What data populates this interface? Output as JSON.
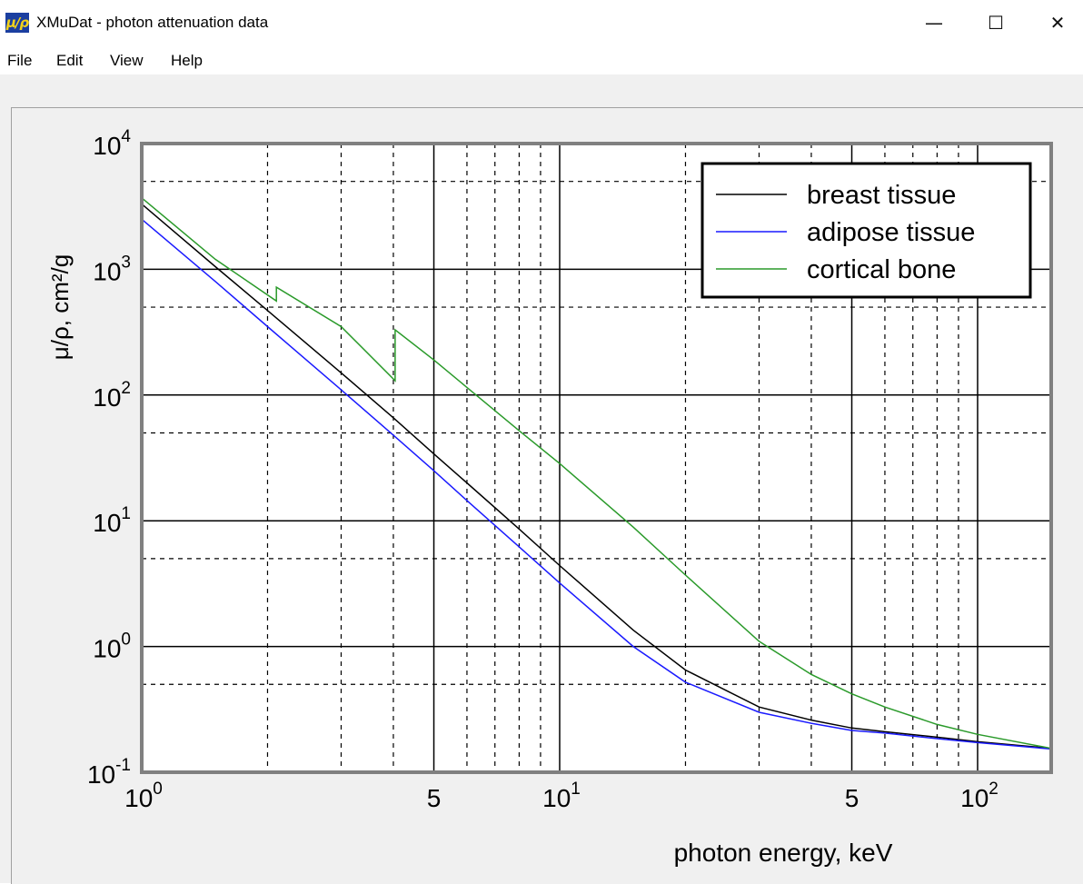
{
  "window": {
    "title": "XMuDat - photon attenuation data",
    "icon": "xmudat-app-icon",
    "icon_text": "μ/ρ",
    "controls": {
      "minimize": "—",
      "maximize": "☐",
      "close": "✕"
    }
  },
  "menu": {
    "items": [
      "File",
      "Edit",
      "View",
      "Help"
    ]
  },
  "colors": {
    "breast": "#000000",
    "adipose": "#1a1aff",
    "bone": "#2a9a2a",
    "plot_border": "#808080"
  },
  "chart_data": {
    "type": "line",
    "xscale": "log",
    "yscale": "log",
    "xlim": [
      1,
      150
    ],
    "ylim": [
      0.1,
      10000
    ],
    "xlabel": "photon energy, keV",
    "ylabel": "μ/ρ, cm²/g",
    "grid": true,
    "legend_position": "top-right",
    "y_ticks": [
      {
        "value": 10000,
        "base": "10",
        "exp": "4"
      },
      {
        "value": 1000,
        "base": "10",
        "exp": "3"
      },
      {
        "value": 100,
        "base": "10",
        "exp": "2"
      },
      {
        "value": 10,
        "base": "10",
        "exp": "1"
      },
      {
        "value": 1,
        "base": "10",
        "exp": "0"
      },
      {
        "value": 0.1,
        "base": "10",
        "exp": "-1"
      }
    ],
    "x_ticks": [
      {
        "value": 1,
        "base": "10",
        "exp": "0"
      },
      {
        "value": 5,
        "base": "5",
        "exp": ""
      },
      {
        "value": 10,
        "base": "10",
        "exp": "1"
      },
      {
        "value": 50,
        "base": "5",
        "exp": ""
      },
      {
        "value": 100,
        "base": "10",
        "exp": "2"
      }
    ],
    "series": [
      {
        "name": "breast tissue",
        "color": "#000000",
        "points": [
          [
            1,
            3300
          ],
          [
            1.5,
            1050
          ],
          [
            2,
            470
          ],
          [
            3,
            150
          ],
          [
            4,
            66
          ],
          [
            5,
            34
          ],
          [
            6,
            20
          ],
          [
            8,
            8.6
          ],
          [
            10,
            4.4
          ],
          [
            15,
            1.35
          ],
          [
            20,
            0.65
          ],
          [
            30,
            0.33
          ],
          [
            40,
            0.26
          ],
          [
            50,
            0.225
          ],
          [
            60,
            0.21
          ],
          [
            80,
            0.19
          ],
          [
            100,
            0.175
          ],
          [
            150,
            0.155
          ]
        ]
      },
      {
        "name": "adipose tissue",
        "color": "#1a1aff",
        "points": [
          [
            1,
            2500
          ],
          [
            1.5,
            800
          ],
          [
            2,
            350
          ],
          [
            3,
            110
          ],
          [
            4,
            48
          ],
          [
            5,
            25
          ],
          [
            6,
            14.5
          ],
          [
            8,
            6.2
          ],
          [
            10,
            3.2
          ],
          [
            15,
            1.0
          ],
          [
            20,
            0.52
          ],
          [
            30,
            0.3
          ],
          [
            40,
            0.245
          ],
          [
            50,
            0.215
          ],
          [
            60,
            0.205
          ],
          [
            80,
            0.185
          ],
          [
            100,
            0.172
          ],
          [
            150,
            0.153
          ]
        ]
      },
      {
        "name": "cortical bone",
        "color": "#2a9a2a",
        "points": [
          [
            1,
            3700
          ],
          [
            1.5,
            1200
          ],
          [
            2.1,
            560
          ],
          [
            2.1,
            720
          ],
          [
            3,
            350
          ],
          [
            4.04,
            130
          ],
          [
            4.04,
            330
          ],
          [
            5,
            190
          ],
          [
            6,
            115
          ],
          [
            8,
            52
          ],
          [
            10,
            28.5
          ],
          [
            15,
            8.9
          ],
          [
            20,
            3.7
          ],
          [
            30,
            1.1
          ],
          [
            40,
            0.6
          ],
          [
            50,
            0.42
          ],
          [
            60,
            0.33
          ],
          [
            80,
            0.24
          ],
          [
            100,
            0.2
          ],
          [
            150,
            0.155
          ]
        ]
      }
    ]
  }
}
